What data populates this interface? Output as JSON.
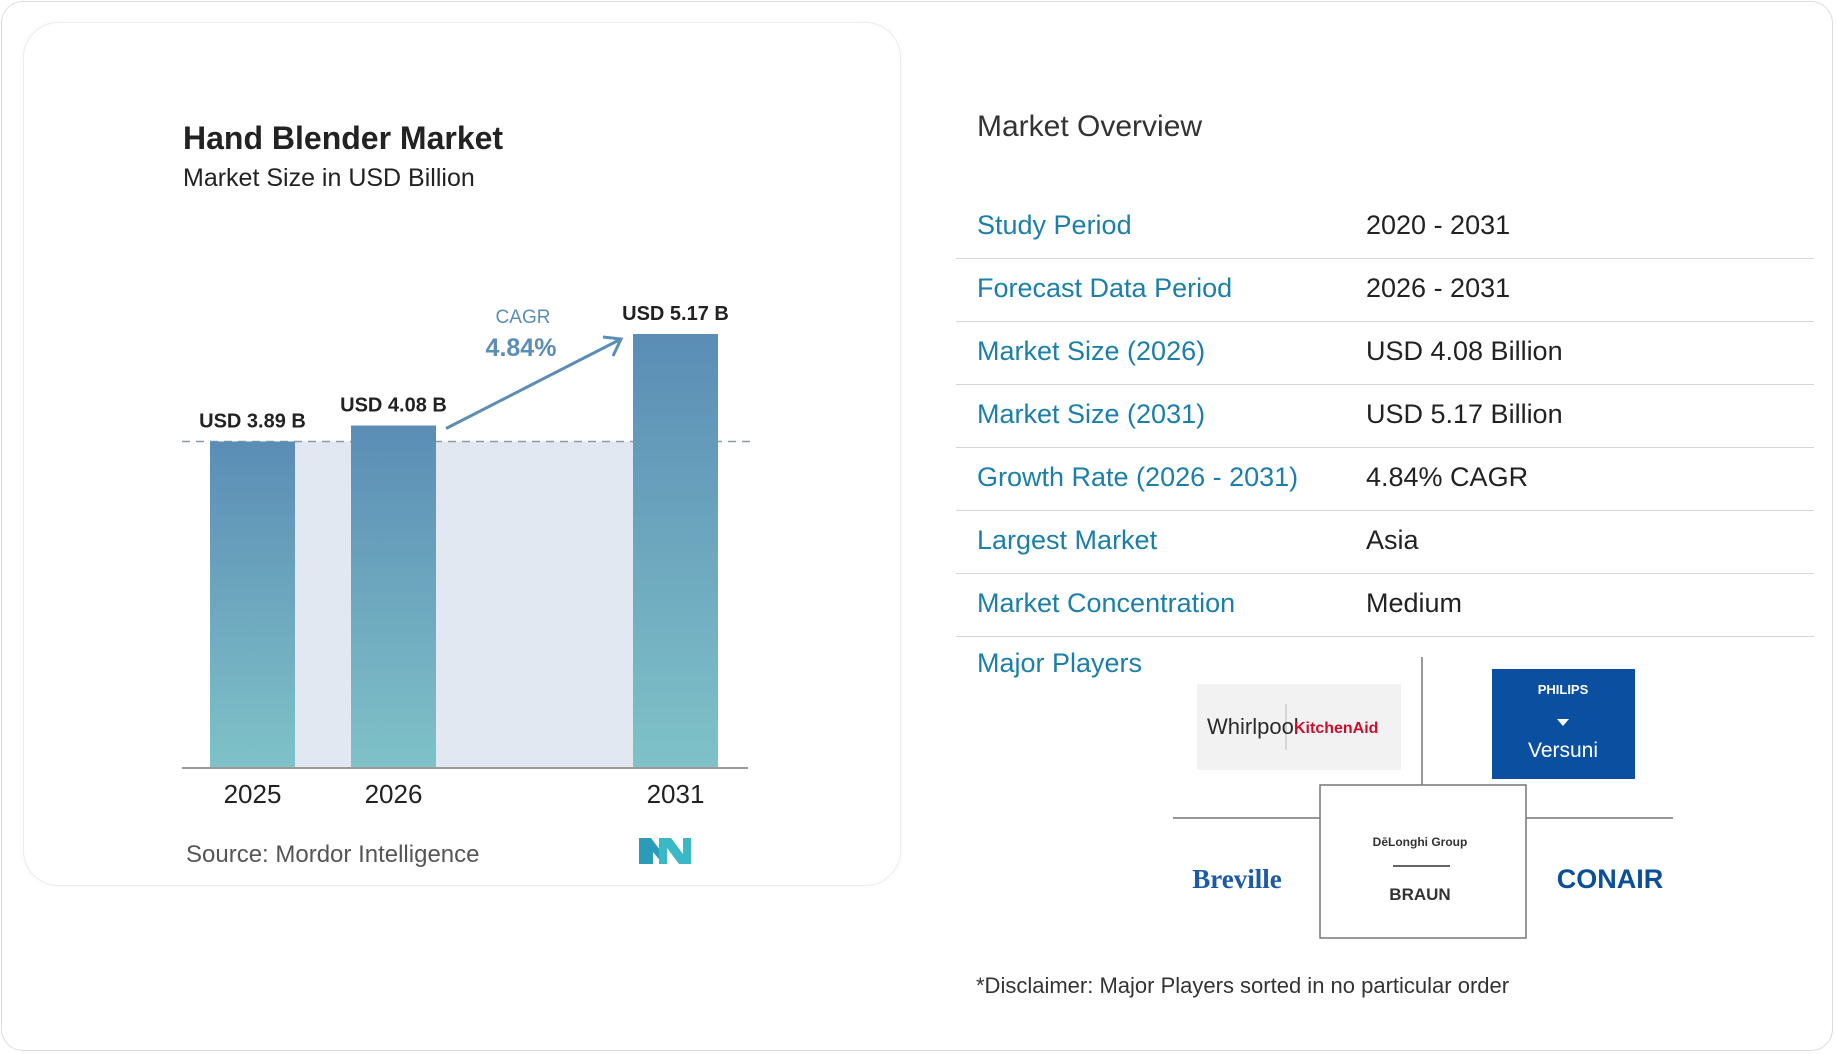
{
  "chart_data": {
    "type": "bar",
    "title": "Hand Blender Market",
    "subtitle": "Market Size in USD Billion",
    "categories": [
      "2025",
      "2026",
      "2031"
    ],
    "values": [
      3.89,
      4.08,
      5.17
    ],
    "value_labels": [
      "USD 3.89 B",
      "USD 4.08 B",
      "USD 5.17 B"
    ],
    "annotation": {
      "label": "CAGR",
      "value": "4.84%"
    },
    "ylim": [
      0,
      5.17
    ],
    "grid": false,
    "legend": "none",
    "colors": {
      "bar_top": "#5b8db5",
      "bar_bottom": "#7fc2c8",
      "band": "#e1e8f1",
      "arrow": "#5b8db5",
      "cagr_label": "#5b8db5"
    }
  },
  "source": "Source:  Mordor Intelligence",
  "overview": {
    "title": "Market Overview",
    "rows": [
      {
        "label": "Study Period",
        "value": "2020 - 2031"
      },
      {
        "label": "Forecast Data Period",
        "value": "2026 - 2031"
      },
      {
        "label": "Market Size (2026)",
        "value": "USD 4.08 Billion"
      },
      {
        "label": "Market Size (2031)",
        "value": "USD 5.17 Billion"
      },
      {
        "label": "Growth Rate (2026 - 2031)",
        "value": "4.84% CAGR"
      },
      {
        "label": "Largest Market",
        "value": "Asia"
      },
      {
        "label": "Market Concentration",
        "value": "Medium"
      }
    ]
  },
  "players": {
    "label": "Major Players",
    "logos": [
      "Whirlpool",
      "KitchenAid",
      "PHILIPS",
      "Versuni",
      "DēLonghi Group",
      "BRAUN",
      "Breville",
      "CONAIR"
    ]
  },
  "disclaimer": "*Disclaimer: Major Players sorted in no particular order"
}
